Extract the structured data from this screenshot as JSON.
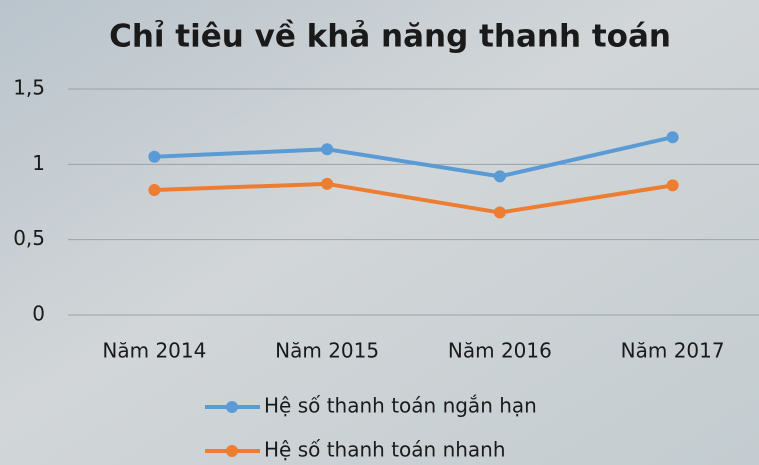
{
  "chart_data": {
    "type": "line",
    "title": "Chỉ tiêu về khả năng thanh toán",
    "categories": [
      "Năm 2014",
      "Năm 2015",
      "Năm 2016",
      "Năm 2017"
    ],
    "series": [
      {
        "name": "Hệ số thanh toán ngắn hạn",
        "color": "#5b9bd5",
        "values": [
          1.05,
          1.1,
          0.92,
          1.18
        ]
      },
      {
        "name": "Hệ số thanh toán nhanh",
        "color": "#ed7d31",
        "values": [
          0.83,
          0.87,
          0.68,
          0.86
        ]
      }
    ],
    "ylim": [
      0,
      1.5
    ],
    "yticks": [
      0,
      {
        "value": 0.5,
        "label": "0,5"
      },
      1,
      {
        "value": 1.5,
        "label": "1,5"
      }
    ],
    "grid": true,
    "legend": "bottom"
  }
}
